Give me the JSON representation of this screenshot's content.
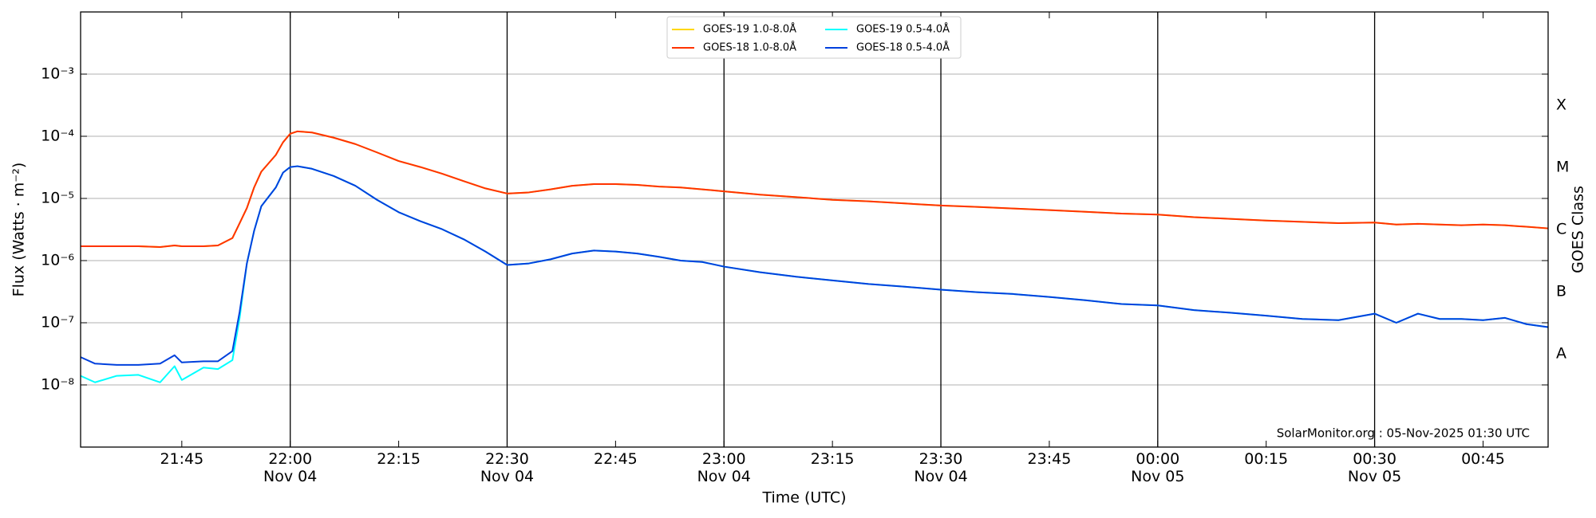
{
  "chart_data": {
    "type": "line",
    "xlabel": "Time (UTC)",
    "ylabel": "Flux (Watts · m⁻²)",
    "y2label": "GOES Class",
    "annotation": "SolarMonitor.org : 05-Nov-2025 01:30 UTC",
    "log_y": true,
    "grid": true,
    "legend_position": "top",
    "xlim": [
      "Nov 04 21:31",
      "Nov 05 00:54"
    ],
    "xticks": [
      {
        "value": "Nov 04 21:45",
        "label": "21:45"
      },
      {
        "value": "Nov 04 22:00",
        "label": "22:00\nNov 04"
      },
      {
        "value": "Nov 04 22:15",
        "label": "22:15"
      },
      {
        "value": "Nov 04 22:30",
        "label": "22:30\nNov 04"
      },
      {
        "value": "Nov 04 22:45",
        "label": "22:45"
      },
      {
        "value": "Nov 04 23:00",
        "label": "23:00\nNov 04"
      },
      {
        "value": "Nov 04 23:15",
        "label": "23:15"
      },
      {
        "value": "Nov 04 23:30",
        "label": "23:30\nNov 04"
      },
      {
        "value": "Nov 04 23:45",
        "label": "23:45"
      },
      {
        "value": "Nov 05 00:00",
        "label": "00:00\nNov 05"
      },
      {
        "value": "Nov 05 00:15",
        "label": "00:15"
      },
      {
        "value": "Nov 05 00:30",
        "label": "00:30\nNov 05"
      },
      {
        "value": "Nov 05 00:45",
        "label": "00:45"
      }
    ],
    "ylim": [
      1e-09,
      0.01
    ],
    "yticks": [
      {
        "value": 1e-08,
        "label": "10⁻⁸"
      },
      {
        "value": 1e-07,
        "label": "10⁻⁷"
      },
      {
        "value": 1e-06,
        "label": "10⁻⁶"
      },
      {
        "value": 1e-05,
        "label": "10⁻⁵"
      },
      {
        "value": 0.0001,
        "label": "10⁻⁴"
      },
      {
        "value": 0.001,
        "label": "10⁻³"
      }
    ],
    "y2lim": [
      1e-09,
      0.01
    ],
    "y2ticks": [
      {
        "value": 3.16e-08,
        "label": "A"
      },
      {
        "value": 3.16e-07,
        "label": "B"
      },
      {
        "value": 3.16e-06,
        "label": "C"
      },
      {
        "value": 3.16e-05,
        "label": "M"
      },
      {
        "value": 0.000316,
        "label": "X"
      }
    ],
    "x": [
      "Nov 04 21:31",
      "Nov 04 21:33",
      "Nov 04 21:36",
      "Nov 04 21:39",
      "Nov 04 21:42",
      "Nov 04 21:44",
      "Nov 04 21:45",
      "Nov 04 21:48",
      "Nov 04 21:50",
      "Nov 04 21:52",
      "Nov 04 21:53",
      "Nov 04 21:54",
      "Nov 04 21:55",
      "Nov 04 21:56",
      "Nov 04 21:58",
      "Nov 04 21:59",
      "Nov 04 22:00",
      "Nov 04 22:01",
      "Nov 04 22:03",
      "Nov 04 22:06",
      "Nov 04 22:09",
      "Nov 04 22:12",
      "Nov 04 22:15",
      "Nov 04 22:18",
      "Nov 04 22:21",
      "Nov 04 22:24",
      "Nov 04 22:27",
      "Nov 04 22:30",
      "Nov 04 22:33",
      "Nov 04 22:36",
      "Nov 04 22:39",
      "Nov 04 22:42",
      "Nov 04 22:45",
      "Nov 04 22:48",
      "Nov 04 22:51",
      "Nov 04 22:54",
      "Nov 04 22:57",
      "Nov 04 23:00",
      "Nov 04 23:05",
      "Nov 04 23:10",
      "Nov 04 23:15",
      "Nov 04 23:20",
      "Nov 04 23:25",
      "Nov 04 23:30",
      "Nov 04 23:35",
      "Nov 04 23:40",
      "Nov 04 23:45",
      "Nov 04 23:50",
      "Nov 04 23:55",
      "Nov 05 00:00",
      "Nov 05 00:05",
      "Nov 05 00:10",
      "Nov 05 00:15",
      "Nov 05 00:20",
      "Nov 05 00:25",
      "Nov 05 00:30",
      "Nov 05 00:33",
      "Nov 05 00:36",
      "Nov 05 00:39",
      "Nov 05 00:42",
      "Nov 05 00:45",
      "Nov 05 00:48",
      "Nov 05 00:51",
      "Nov 05 00:54"
    ],
    "series": [
      {
        "name": "GOES-19 1.0-8.0Å",
        "color": "#ffd700",
        "values": [
          1.7e-06,
          1.7e-06,
          1.7e-06,
          1.7e-06,
          1.65e-06,
          1.75e-06,
          1.7e-06,
          1.7e-06,
          1.75e-06,
          2.3e-06,
          4e-06,
          7e-06,
          1.5e-05,
          2.7e-05,
          5e-05,
          8e-05,
          0.00011,
          0.00012,
          0.000115,
          9.5e-05,
          7.5e-05,
          5.5e-05,
          4e-05,
          3.2e-05,
          2.5e-05,
          1.9e-05,
          1.45e-05,
          1.2e-05,
          1.25e-05,
          1.4e-05,
          1.6e-05,
          1.7e-05,
          1.7e-05,
          1.65e-05,
          1.55e-05,
          1.5e-05,
          1.4e-05,
          1.3e-05,
          1.15e-05,
          1.05e-05,
          9.5e-06,
          9e-06,
          8.3e-06,
          7.7e-06,
          7.3e-06,
          6.9e-06,
          6.5e-06,
          6.1e-06,
          5.7e-06,
          5.5e-06,
          5e-06,
          4.7e-06,
          4.4e-06,
          4.2e-06,
          4e-06,
          4.1e-06,
          3.8e-06,
          3.9e-06,
          3.8e-06,
          3.7e-06,
          3.8e-06,
          3.7e-06,
          3.5e-06,
          3.3e-06
        ]
      },
      {
        "name": "GOES-18 1.0-8.0Å",
        "color": "#ff3300",
        "values": [
          1.7e-06,
          1.7e-06,
          1.7e-06,
          1.7e-06,
          1.65e-06,
          1.75e-06,
          1.7e-06,
          1.7e-06,
          1.75e-06,
          2.3e-06,
          4e-06,
          7e-06,
          1.5e-05,
          2.7e-05,
          5e-05,
          8e-05,
          0.00011,
          0.00012,
          0.000115,
          9.5e-05,
          7.5e-05,
          5.5e-05,
          4e-05,
          3.2e-05,
          2.5e-05,
          1.9e-05,
          1.45e-05,
          1.2e-05,
          1.25e-05,
          1.4e-05,
          1.6e-05,
          1.7e-05,
          1.7e-05,
          1.65e-05,
          1.55e-05,
          1.5e-05,
          1.4e-05,
          1.3e-05,
          1.15e-05,
          1.05e-05,
          9.5e-06,
          9e-06,
          8.3e-06,
          7.7e-06,
          7.3e-06,
          6.9e-06,
          6.5e-06,
          6.1e-06,
          5.7e-06,
          5.5e-06,
          5e-06,
          4.7e-06,
          4.4e-06,
          4.2e-06,
          4e-06,
          4.1e-06,
          3.8e-06,
          3.9e-06,
          3.8e-06,
          3.7e-06,
          3.8e-06,
          3.7e-06,
          3.5e-06,
          3.3e-06
        ]
      },
      {
        "name": "GOES-19 0.5-4.0Å",
        "color": "#00ffff",
        "values": [
          1.4e-08,
          1.1e-08,
          1.4e-08,
          1.45e-08,
          1.1e-08,
          2e-08,
          1.2e-08,
          1.9e-08,
          1.8e-08,
          2.5e-08,
          1.2e-07,
          9e-07,
          3e-06,
          7.5e-06,
          1.5e-05,
          2.6e-05,
          3.2e-05,
          3.3e-05,
          3e-05,
          2.3e-05,
          1.6e-05,
          9.5e-06,
          6e-06,
          4.3e-06,
          3.2e-06,
          2.2e-06,
          1.4e-06,
          8.5e-07,
          9e-07,
          1.05e-06,
          1.3e-06,
          1.45e-06,
          1.4e-06,
          1.3e-06,
          1.15e-06,
          1e-06,
          9.5e-07,
          8e-07,
          6.5e-07,
          5.5e-07,
          4.8e-07,
          4.2e-07,
          3.8e-07,
          3.4e-07,
          3.1e-07,
          2.9e-07,
          2.6e-07,
          2.3e-07,
          2e-07,
          1.9e-07,
          1.6e-07,
          1.45e-07,
          1.3e-07,
          1.15e-07,
          1.1e-07,
          1.4e-07,
          1e-07,
          1.4e-07,
          1.15e-07,
          1.15e-07,
          1.1e-07,
          1.2e-07,
          9.5e-08,
          8.5e-08
        ]
      },
      {
        "name": "GOES-18 0.5-4.0Å",
        "color": "#0040dd",
        "values": [
          2.8e-08,
          2.2e-08,
          2.1e-08,
          2.1e-08,
          2.2e-08,
          3e-08,
          2.3e-08,
          2.4e-08,
          2.4e-08,
          3.5e-08,
          1.5e-07,
          9e-07,
          3e-06,
          7.5e-06,
          1.5e-05,
          2.6e-05,
          3.2e-05,
          3.3e-05,
          3e-05,
          2.3e-05,
          1.6e-05,
          9.5e-06,
          6e-06,
          4.3e-06,
          3.2e-06,
          2.2e-06,
          1.4e-06,
          8.5e-07,
          9e-07,
          1.05e-06,
          1.3e-06,
          1.45e-06,
          1.4e-06,
          1.3e-06,
          1.15e-06,
          1e-06,
          9.5e-07,
          8e-07,
          6.5e-07,
          5.5e-07,
          4.8e-07,
          4.2e-07,
          3.8e-07,
          3.4e-07,
          3.1e-07,
          2.9e-07,
          2.6e-07,
          2.3e-07,
          2e-07,
          1.9e-07,
          1.6e-07,
          1.45e-07,
          1.3e-07,
          1.15e-07,
          1.1e-07,
          1.4e-07,
          1e-07,
          1.4e-07,
          1.15e-07,
          1.15e-07,
          1.1e-07,
          1.2e-07,
          9.5e-08,
          8.5e-08
        ]
      }
    ]
  }
}
